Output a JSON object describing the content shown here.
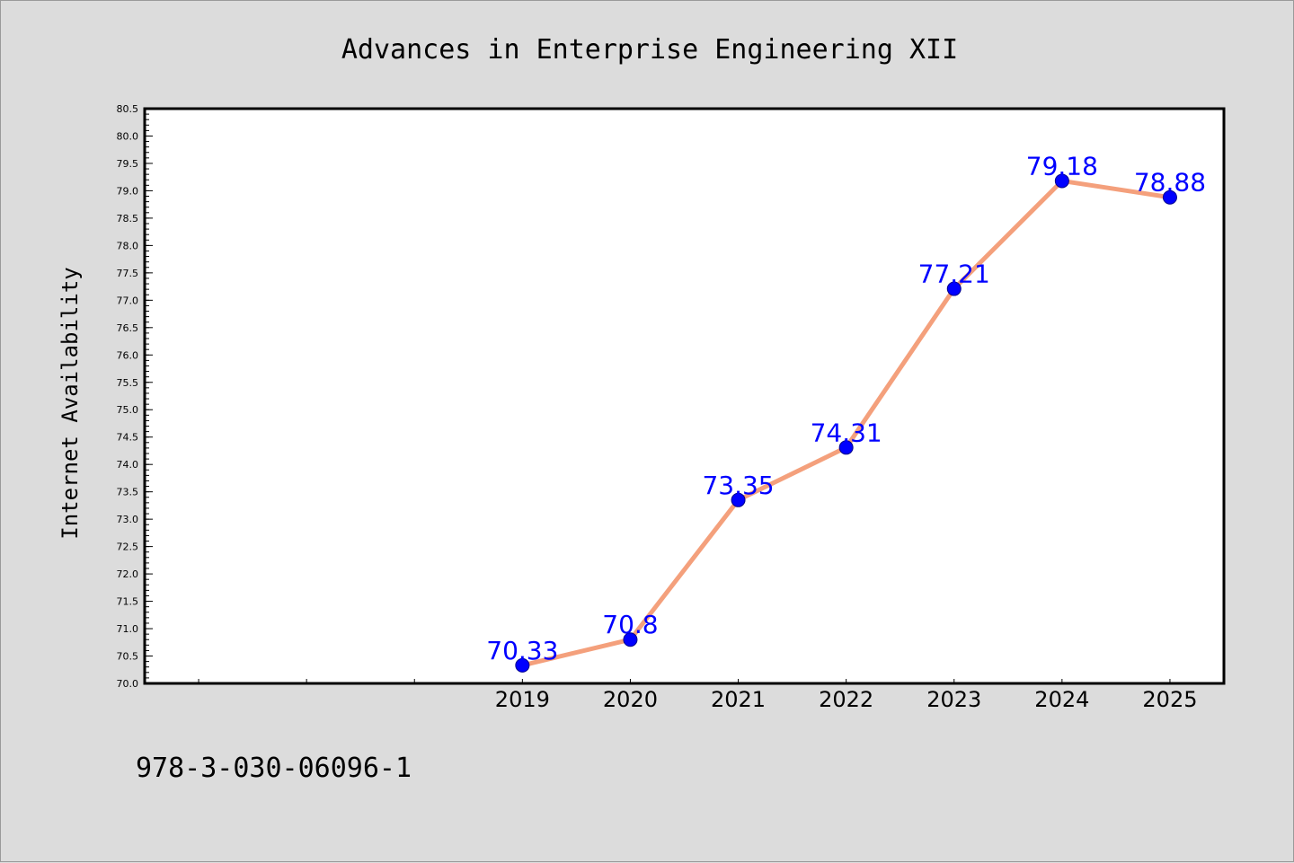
{
  "footer": {
    "isbn": "978-3-030-06096-1"
  },
  "colors": {
    "background": "#dcdcdc",
    "plot_background": "#ffffff",
    "line": "#f4a07c",
    "marker_fill": "#0000ff",
    "label_text": "#0000ff",
    "axis": "#000000"
  },
  "chart_data": {
    "type": "line",
    "title": "Advances in Enterprise Engineering XII",
    "xlabel": "",
    "ylabel": "Internet Availability",
    "categories": [
      "2019",
      "2020",
      "2021",
      "2022",
      "2023",
      "2024",
      "2025"
    ],
    "series": [
      {
        "values": [
          70.33,
          70.8,
          73.35,
          74.31,
          77.21,
          79.18,
          78.88
        ],
        "labels": [
          "70.33",
          "70.8",
          "73.35",
          "74.31",
          "77.21",
          "79.18",
          "78.88"
        ]
      }
    ],
    "xlim": [
      2015.5,
      2025.5
    ],
    "ylim": [
      70.0,
      80.5
    ],
    "yticks": [
      "70.0",
      "70.5",
      "71.0",
      "71.5",
      "72.0",
      "72.5",
      "73.0",
      "73.5",
      "74.0",
      "74.5",
      "75.0",
      "75.5",
      "76.0",
      "76.5",
      "77.0",
      "77.5",
      "78.0",
      "78.5",
      "79.0",
      "79.5",
      "80.0",
      "80.5"
    ],
    "grid": false,
    "legend": "none"
  }
}
